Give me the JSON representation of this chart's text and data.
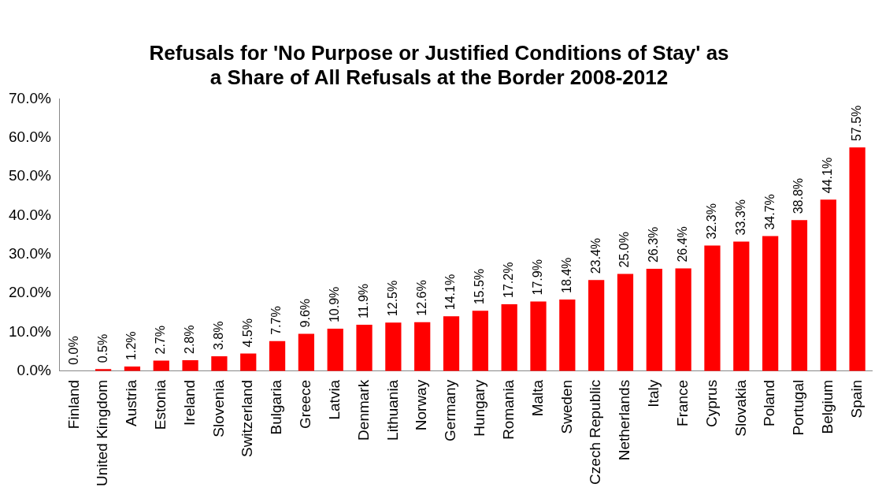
{
  "chart_data": {
    "type": "bar",
    "title": "Refusals for 'No Purpose or Justified Conditions of Stay' as a Share of All Refusals at the Border 2008-2012",
    "categories": [
      "Finland",
      "United Kingdom",
      "Austria",
      "Estonia",
      "Ireland",
      "Slovenia",
      "Switzerland",
      "Bulgaria",
      "Greece",
      "Latvia",
      "Denmark",
      "Lithuania",
      "Norway",
      "Germany",
      "Hungary",
      "Romania",
      "Malta",
      "Sweden",
      "Czech Republic",
      "Netherlands",
      "Italy",
      "France",
      "Cyprus",
      "Slovakia",
      "Poland",
      "Portugal",
      "Belgium",
      "Spain"
    ],
    "values": [
      0.0,
      0.5,
      1.2,
      2.7,
      2.8,
      3.8,
      4.5,
      7.7,
      9.6,
      10.9,
      11.9,
      12.5,
      12.6,
      14.1,
      15.5,
      17.2,
      17.9,
      18.4,
      23.4,
      25.0,
      26.3,
      26.4,
      32.3,
      33.3,
      34.7,
      38.8,
      44.1,
      57.5
    ],
    "value_labels": [
      "0.0%",
      "0.5%",
      "1.2%",
      "2.7%",
      "2.8%",
      "3.8%",
      "4.5%",
      "7.7%",
      "9.6%",
      "10.9%",
      "11.9%",
      "12.5%",
      "12.6%",
      "14.1%",
      "15.5%",
      "17.2%",
      "17.9%",
      "18.4%",
      "23.4%",
      "25.0%",
      "26.3%",
      "26.4%",
      "32.3%",
      "33.3%",
      "34.7%",
      "38.8%",
      "44.1%",
      "57.5%"
    ],
    "color": "#ff0000",
    "ylim": [
      0,
      70
    ],
    "yticks": [
      {
        "value": 0,
        "label": "0.0%"
      },
      {
        "value": 10,
        "label": "10.0%"
      },
      {
        "value": 20,
        "label": "20.0%"
      },
      {
        "value": 30,
        "label": "30.0%"
      },
      {
        "value": 40,
        "label": "40.0%"
      },
      {
        "value": 50,
        "label": "50.0%"
      },
      {
        "value": 60,
        "label": "60.0%"
      },
      {
        "value": 70,
        "label": "70.0%"
      }
    ],
    "grid": false,
    "legend": false
  }
}
